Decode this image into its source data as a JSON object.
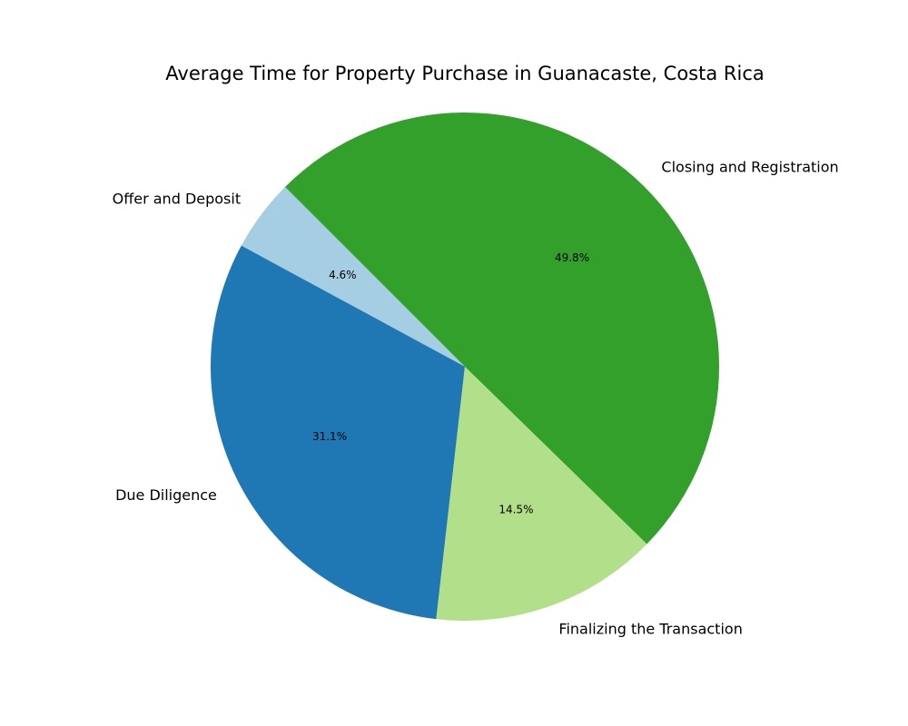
{
  "chart_data": {
    "type": "pie",
    "title": "Average Time for Property Purchase in Guanacaste, Costa Rica",
    "start_angle_deg": 135,
    "direction": "counterclockwise",
    "slices": [
      {
        "label": "Offer and Deposit",
        "value": 4.6,
        "pct_label": "4.6%",
        "color": "#a6cee3"
      },
      {
        "label": "Due Diligence",
        "value": 31.1,
        "pct_label": "31.1%",
        "color": "#1f78b4"
      },
      {
        "label": "Finalizing the Transaction",
        "value": 14.5,
        "pct_label": "14.5%",
        "color": "#b2df8a"
      },
      {
        "label": "Closing and Registration",
        "value": 49.8,
        "pct_label": "49.8%",
        "color": "#33a02c"
      }
    ]
  }
}
